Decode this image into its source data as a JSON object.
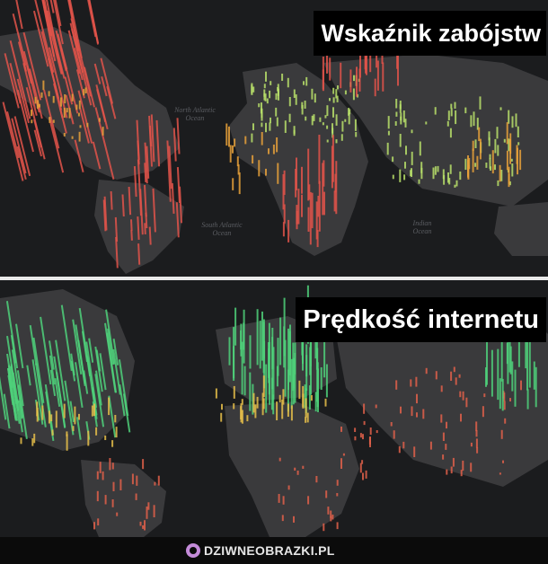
{
  "top_panel": {
    "title": "Wskaźnik zabójstw",
    "ocean_labels": {
      "north_atlantic": "North Atlantic Ocean",
      "south_atlantic": "South Atlantic Ocean",
      "indian": "Indian Ocean"
    },
    "colors": {
      "high": "#e2544a",
      "mid": "#e8a13a",
      "low": "#b8e06a"
    }
  },
  "bottom_panel": {
    "title": "Prędkość internetu",
    "colors": {
      "fast": "#4fd17a",
      "mid": "#e8c04a",
      "slow": "#e2604a"
    }
  },
  "footer": {
    "brand": "DZIWNEOBRAZKI.PL",
    "icon": "speech-bubble-icon"
  },
  "colors": {
    "land": "#3a3a3c",
    "ocean": "#1b1c1e",
    "divider": "#e9e9e9"
  }
}
